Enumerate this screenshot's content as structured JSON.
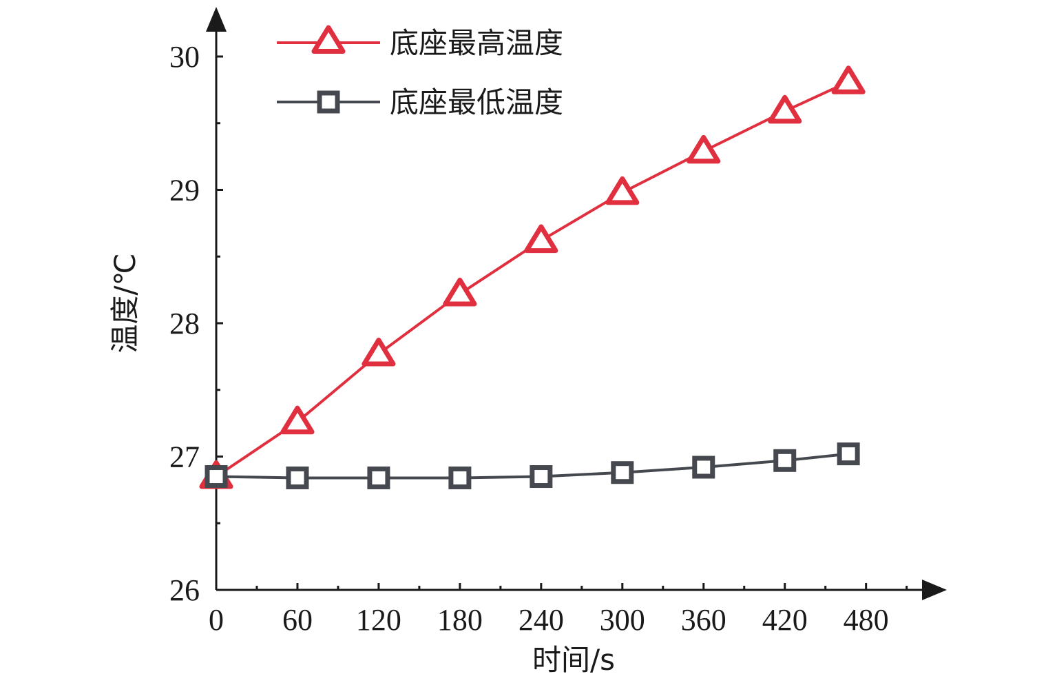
{
  "colors": {
    "max_series": "#e03040",
    "min_series": "#45484e",
    "axis": "#1a1a1a"
  },
  "chart_data": {
    "type": "line",
    "xlabel": "时间/s",
    "ylabel": "温度/℃",
    "xlim": [
      0,
      520
    ],
    "ylim": [
      26,
      30.4
    ],
    "xticks": [
      0,
      60,
      120,
      180,
      240,
      300,
      360,
      420,
      480
    ],
    "yticks": [
      26,
      27,
      28,
      29,
      30
    ],
    "grid": false,
    "legend_position": "top-left",
    "x": [
      0,
      60,
      120,
      180,
      240,
      300,
      360,
      420,
      467
    ],
    "series": [
      {
        "name": "底座最高温度",
        "marker": "triangle",
        "color": "#e03040",
        "values": [
          26.85,
          27.26,
          27.77,
          28.22,
          28.62,
          28.98,
          29.29,
          29.59,
          29.81
        ]
      },
      {
        "name": "底座最低温度",
        "marker": "square",
        "color": "#45484e",
        "values": [
          26.85,
          26.84,
          26.84,
          26.84,
          26.85,
          26.88,
          26.92,
          26.97,
          27.02
        ]
      }
    ]
  }
}
